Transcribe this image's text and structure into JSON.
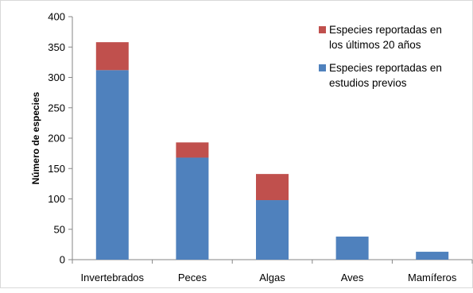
{
  "chart_data": {
    "type": "bar",
    "stacked": true,
    "title": "",
    "xlabel": "",
    "ylabel": "Número de especies",
    "ylim": [
      0,
      400
    ],
    "yticks": [
      0,
      50,
      100,
      150,
      200,
      250,
      300,
      350,
      400
    ],
    "grid": false,
    "legend_position": "top-right",
    "categories": [
      "Invertebrados",
      "Peces",
      "Algas",
      "Aves",
      "Mamíferos"
    ],
    "series": [
      {
        "name": "Especies reportadas en estudios previos",
        "legend_lines": [
          "Especies reportadas en",
          "estudios previos"
        ],
        "color": "#4F81BD",
        "values": [
          312,
          168,
          98,
          38,
          13
        ]
      },
      {
        "name": "Especies reportadas en los últimos 20 años",
        "legend_lines": [
          "Especies reportadas en",
          "los últimos 20 años"
        ],
        "color": "#C0504D",
        "values": [
          46,
          25,
          43,
          0,
          0
        ]
      }
    ]
  }
}
